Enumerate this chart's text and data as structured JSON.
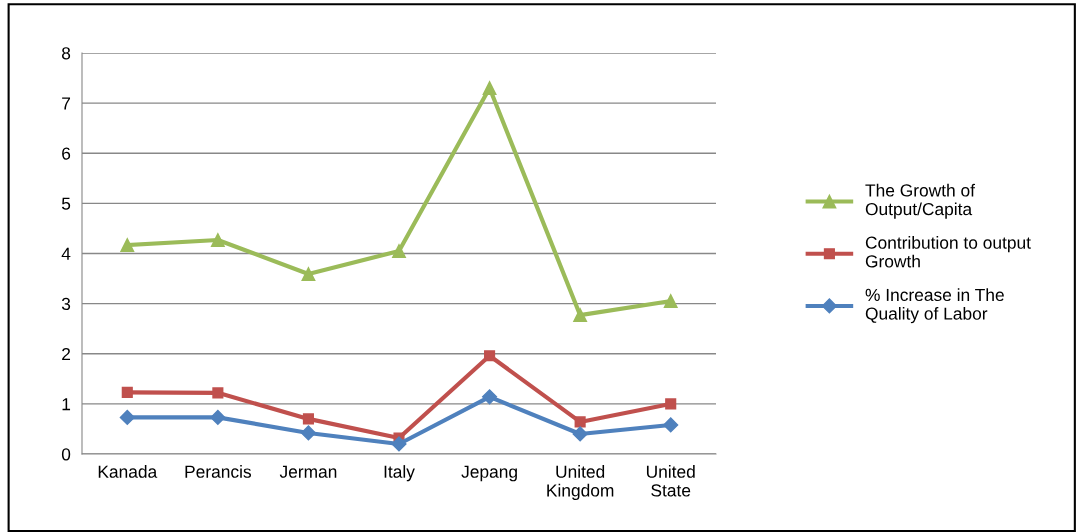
{
  "chart_data": {
    "type": "line",
    "categories": [
      "Kanada",
      "Perancis",
      "Jerman",
      "Italy",
      "Jepang",
      "United\nKingdom",
      "United\nState"
    ],
    "ylim": [
      0,
      8
    ],
    "yticks": [
      0,
      1,
      2,
      3,
      4,
      5,
      6,
      7,
      8
    ],
    "grid": "y",
    "legend": "right",
    "line_style": "solid",
    "series": [
      {
        "name": "The Growth of\nOutput/Capita",
        "color": "#9bbb59",
        "marker": "triangle",
        "values": [
          4.17,
          4.27,
          3.59,
          4.05,
          7.3,
          2.77,
          3.05
        ]
      },
      {
        "name": "Contribution to output\nGrowth",
        "color": "#c0504d",
        "marker": "square",
        "values": [
          1.23,
          1.22,
          0.7,
          0.32,
          1.96,
          0.64,
          1.0
        ]
      },
      {
        "name": "% Increase in The\nQuality of Labor",
        "color": "#4f81bd",
        "marker": "diamond",
        "values": [
          0.73,
          0.73,
          0.42,
          0.2,
          1.14,
          0.4,
          0.58
        ]
      }
    ]
  }
}
